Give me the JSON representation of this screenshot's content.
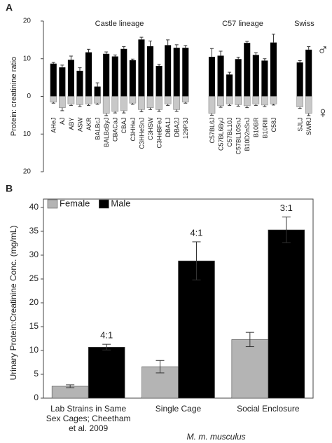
{
  "chart_data": [
    {
      "type": "bar",
      "layout": "mirrored",
      "panel": "A",
      "y_label": "Protein: creatinine ratio",
      "categories": [
        "AHeJ",
        "AJ",
        "ABY",
        "ASW",
        "AKR",
        "BALBcJ",
        "BALBcByJ",
        "CBACaJ",
        "CBAJ",
        "C3HHeJ",
        "C3HHeSnJ",
        "C3HSW",
        "C3HeBFeJ",
        "DBA1J",
        "DBA2J",
        "129P3J",
        null,
        null,
        "C57BL6J",
        "C57BL6ByJ",
        "C57BL10J",
        "C57BL10SnJ",
        "B10D2nSnJ",
        "B10BR",
        "B10RIII",
        "C58J",
        null,
        null,
        "SJLJ",
        "SWRJ"
      ],
      "groups": [
        {
          "label": "Castle lineage"
        },
        {
          "label": "C57 lineage"
        },
        {
          "label": "Swiss"
        }
      ],
      "series": [
        {
          "name": "♂",
          "color": "#000000",
          "values": [
            8.7,
            7.7,
            9.7,
            6.8,
            11.7,
            2.6,
            11.3,
            10.6,
            12.6,
            9.6,
            15.1,
            13.3,
            8.1,
            13.6,
            12.9,
            12.9,
            null,
            null,
            10.5,
            10.8,
            5.8,
            9.9,
            14.2,
            11.0,
            9.5,
            14.3,
            null,
            null,
            9.0,
            12.4
          ],
          "errors": [
            0.3,
            0.6,
            1.0,
            0.8,
            0.8,
            1.0,
            0.5,
            0.4,
            0.6,
            0.3,
            0.6,
            1.4,
            0.4,
            1.4,
            0.8,
            0.6,
            null,
            null,
            2.2,
            1.2,
            0.6,
            0.5,
            0.4,
            0.6,
            0.5,
            2.2,
            null,
            null,
            0.5,
            0.8
          ]
        },
        {
          "name": "♀",
          "color": "#c8c8c8",
          "values": [
            -1.5,
            -3.0,
            -2.0,
            -2.2,
            -2.0,
            -1.8,
            -4.5,
            -4.0,
            -3.8,
            -1.8,
            -3.5,
            -3.0,
            -3.5,
            -2.0,
            -3.5,
            -1.5,
            null,
            null,
            -4.5,
            -2.5,
            -2.0,
            -2.2,
            -2.5,
            -2.0,
            -2.3,
            -2.0,
            null,
            null,
            -2.8,
            -4.5
          ],
          "errors": [
            0.3,
            0.8,
            0.4,
            0.5,
            0.4,
            0.3,
            0.6,
            0.4,
            0.6,
            0.3,
            0.6,
            0.5,
            0.5,
            0.4,
            0.5,
            0.3,
            null,
            null,
            0.5,
            0.4,
            0.4,
            0.4,
            0.5,
            0.4,
            0.4,
            0.3,
            null,
            null,
            0.4,
            0.6
          ]
        }
      ],
      "ylim": [
        -20,
        20
      ],
      "yticks": [
        {
          "value": -20,
          "label": "20"
        },
        {
          "value": -10,
          "label": "10"
        },
        0,
        10,
        20
      ]
    },
    {
      "type": "bar",
      "layout": "grouped",
      "panel": "B",
      "y_label": "Urinary Protein:Creatinine Conc. (mg/mL)",
      "subtitle": "M. m. musculus",
      "categories": [
        "Lab Strains in Same Sex Cages; Cheetham et al. 2009",
        "Single Cage",
        "Social Enclosure"
      ],
      "series": [
        {
          "name": "Female",
          "color": "#b4b4b4",
          "values": [
            2.5,
            6.6,
            12.3
          ],
          "errors": [
            0.3,
            1.3,
            1.5
          ]
        },
        {
          "name": "Male",
          "color": "#000000",
          "values": [
            10.7,
            28.8,
            35.3
          ],
          "errors": [
            0.6,
            4.0,
            2.7
          ]
        }
      ],
      "ratio_labels": [
        "4:1",
        "4:1",
        "3:1"
      ],
      "legend": "upper left",
      "ylim": [
        0,
        40
      ],
      "yticks": [
        0,
        5,
        10,
        15,
        20,
        25,
        30,
        35,
        40
      ]
    }
  ]
}
